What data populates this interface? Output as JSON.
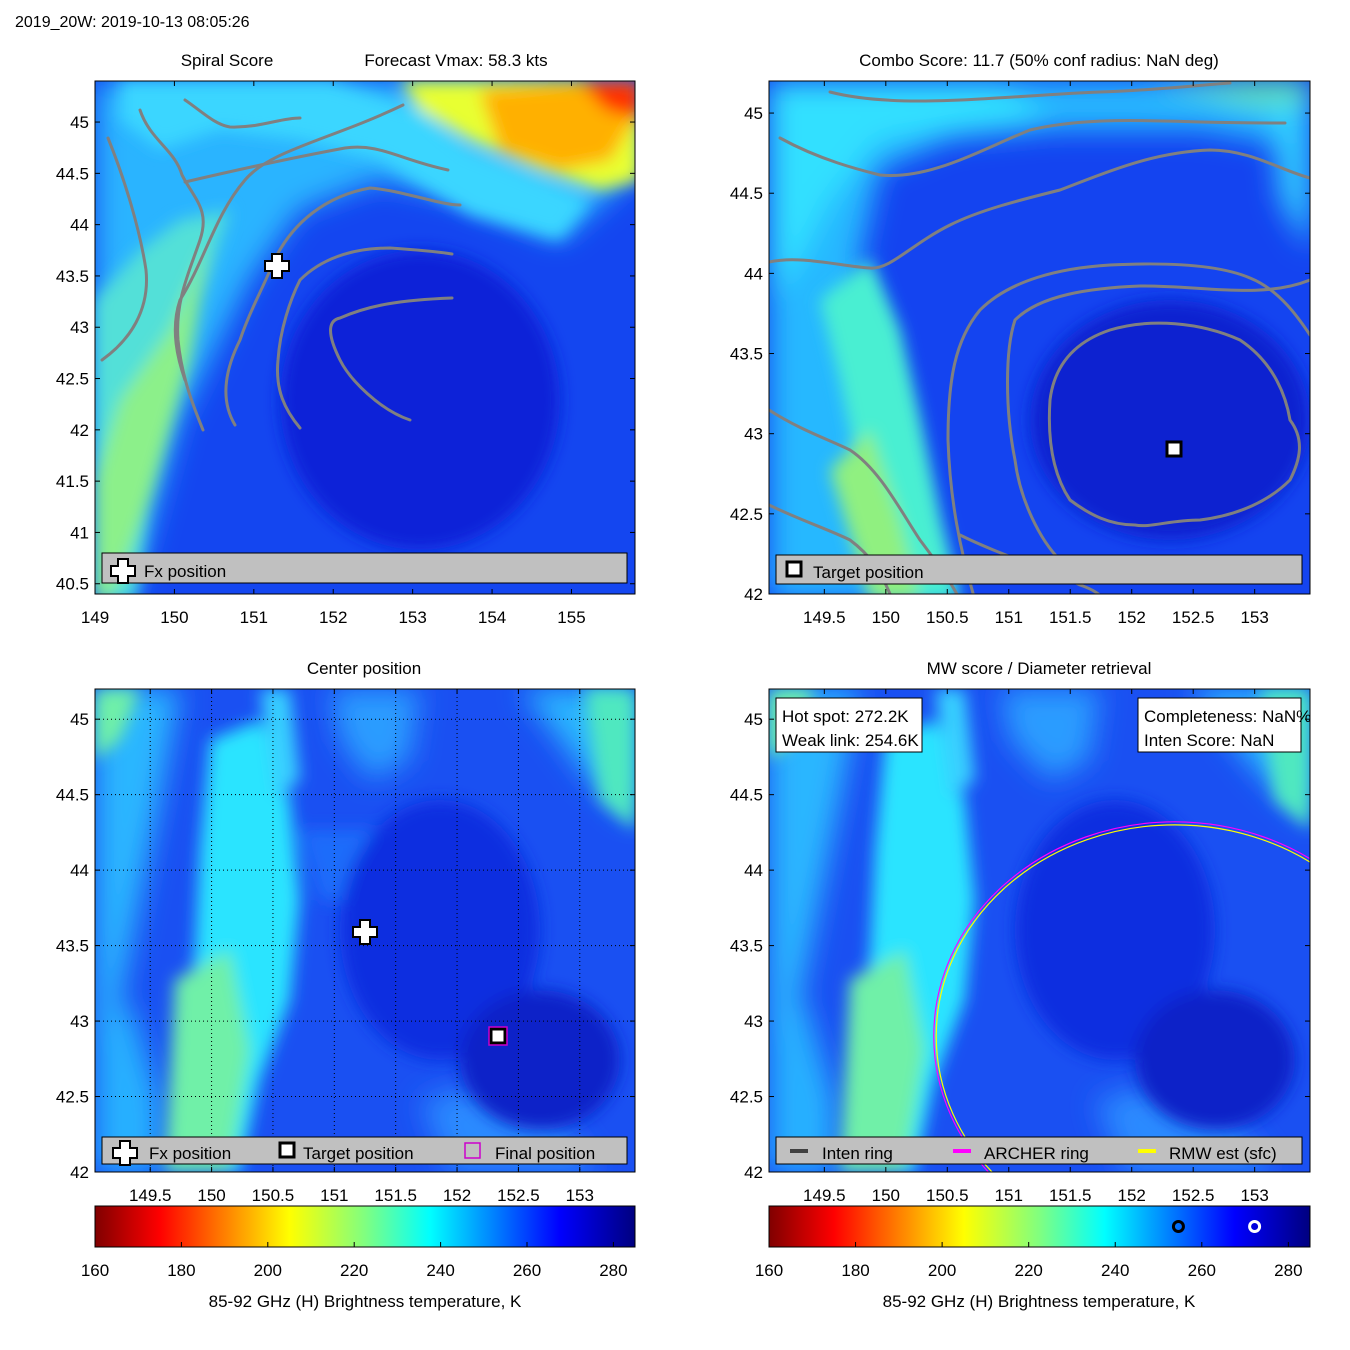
{
  "header": {
    "title": "2019_20W: 2019-10-13 08:05:26"
  },
  "colors": {
    "contour": "#808080",
    "legend_bg": "#c0c0c0",
    "inten_ring": "#404040",
    "archer_ring": "#ff00ff",
    "rmw_ring": "#ffff00",
    "final_marker": "#cc00cc"
  },
  "chart_data": [
    {
      "id": "spiral",
      "type": "heatmap",
      "title_left": "Spiral Score",
      "title_right": "Forecast Vmax: 58.3 kts",
      "xlim": [
        149,
        155.8
      ],
      "ylim": [
        40.4,
        45.4
      ],
      "xticks": [
        149,
        150,
        151,
        152,
        153,
        154,
        155
      ],
      "yticks": [
        40.5,
        41,
        41.5,
        42,
        42.5,
        43,
        43.5,
        44,
        44.5,
        45
      ],
      "xticklabels": [
        "149",
        "150",
        "151",
        "152",
        "153",
        "154",
        "155"
      ],
      "yticklabels": [
        "40.5",
        "41",
        "41.5",
        "42",
        "42.5",
        "43",
        "43.5",
        "44",
        "44.5",
        "45"
      ],
      "markers": [
        {
          "kind": "fx",
          "x": 151.25,
          "y": 43.6
        }
      ],
      "legend": [
        {
          "icon": "plus",
          "label": "Fx position"
        }
      ],
      "legend_location": "bottom",
      "overlay": "spiral-contours",
      "grid": false
    },
    {
      "id": "combo",
      "type": "heatmap",
      "title": "Combo Score: 11.7  (50% conf radius: NaN deg)",
      "xlim": [
        149.05,
        153.45
      ],
      "ylim": [
        42,
        45.2
      ],
      "xticks": [
        149.5,
        150,
        150.5,
        151,
        151.5,
        152,
        152.5,
        153
      ],
      "yticks": [
        42,
        42.5,
        43,
        43.5,
        44,
        44.5,
        45
      ],
      "xticklabels": [
        "149.5",
        "150",
        "150.5",
        "151",
        "151.5",
        "152",
        "152.5",
        "153"
      ],
      "yticklabels": [
        "42",
        "42.5",
        "43",
        "43.5",
        "44",
        "44.5",
        "45"
      ],
      "markers": [
        {
          "kind": "target",
          "x": 152.35,
          "y": 42.9
        }
      ],
      "legend": [
        {
          "icon": "square",
          "label": "Target position"
        }
      ],
      "legend_location": "bottom",
      "overlay": "score-contours",
      "grid": false
    },
    {
      "id": "center",
      "type": "heatmap",
      "title": "Center position",
      "xlim": [
        149.05,
        153.45
      ],
      "ylim": [
        42,
        45.2
      ],
      "xticks": [
        149.5,
        150,
        150.5,
        151,
        151.5,
        152,
        152.5,
        153
      ],
      "yticks": [
        42,
        42.5,
        43,
        43.5,
        44,
        44.5,
        45
      ],
      "xticklabels": [
        "149.5",
        "150",
        "150.5",
        "151",
        "151.5",
        "152",
        "152.5",
        "153"
      ],
      "yticklabels": [
        "42",
        "42.5",
        "43",
        "43.5",
        "44",
        "44.5",
        "45"
      ],
      "markers": [
        {
          "kind": "fx",
          "x": 151.25,
          "y": 43.6
        },
        {
          "kind": "target",
          "x": 152.35,
          "y": 42.9
        },
        {
          "kind": "final",
          "x": 152.35,
          "y": 42.9
        }
      ],
      "legend": [
        {
          "icon": "plus",
          "label": "Fx position"
        },
        {
          "icon": "square",
          "label": "Target position"
        },
        {
          "icon": "final",
          "label": "Final position"
        }
      ],
      "legend_location": "bottom",
      "grid": true
    },
    {
      "id": "mw",
      "type": "heatmap",
      "title": "MW score / Diameter retrieval",
      "xlim": [
        149.05,
        153.45
      ],
      "ylim": [
        42,
        45.2
      ],
      "xticks": [
        149.5,
        150,
        150.5,
        151,
        151.5,
        152,
        152.5,
        153
      ],
      "yticks": [
        42,
        42.5,
        43,
        43.5,
        44,
        44.5,
        45
      ],
      "xticklabels": [
        "149.5",
        "150",
        "150.5",
        "151",
        "151.5",
        "152",
        "152.5",
        "153"
      ],
      "yticklabels": [
        "42",
        "42.5",
        "43",
        "43.5",
        "44",
        "44.5",
        "45"
      ],
      "info_left": [
        "Hot spot: 272.2K",
        "Weak link: 254.6K"
      ],
      "info_right": [
        "Completeness: NaN%",
        "Inten Score: NaN"
      ],
      "rings": [
        {
          "name": "archer",
          "cx": 152.35,
          "cy": 42.9,
          "rx_deg": 1.96,
          "ry_deg": 1.42
        },
        {
          "name": "rmw",
          "cx": 152.35,
          "cy": 42.9,
          "rx_deg": 1.94,
          "ry_deg": 1.4
        }
      ],
      "legend": [
        {
          "icon": "inten",
          "label": "Inten ring"
        },
        {
          "icon": "archer",
          "label": "ARCHER ring"
        },
        {
          "icon": "rmw",
          "label": "RMW est (sfc)"
        }
      ],
      "legend_location": "bottom",
      "grid": false
    }
  ],
  "colorbars": [
    {
      "min": 160,
      "max": 285,
      "ticks": [
        160,
        180,
        200,
        220,
        240,
        260,
        280
      ],
      "ticklabels": [
        "160",
        "180",
        "200",
        "220",
        "240",
        "260",
        "280"
      ],
      "label": "85-92 GHz (H) Brightness temperature, K"
    },
    {
      "min": 160,
      "max": 285,
      "ticks": [
        160,
        180,
        200,
        220,
        240,
        260,
        280
      ],
      "ticklabels": [
        "160",
        "180",
        "200",
        "220",
        "240",
        "260",
        "280"
      ],
      "label": "85-92 GHz (H) Brightness temperature, K",
      "marks": [
        {
          "name": "weak-link",
          "value": 254.6
        },
        {
          "name": "hot-spot",
          "value": 272.2
        }
      ]
    }
  ]
}
